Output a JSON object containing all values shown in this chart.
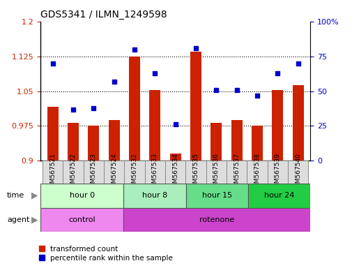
{
  "title": "GDS5341 / ILMN_1249598",
  "samples": [
    "GSM567521",
    "GSM567522",
    "GSM567523",
    "GSM567524",
    "GSM567532",
    "GSM567533",
    "GSM567534",
    "GSM567535",
    "GSM567536",
    "GSM567537",
    "GSM567538",
    "GSM567539",
    "GSM567540"
  ],
  "red_values": [
    1.017,
    0.982,
    0.975,
    0.988,
    1.125,
    1.053,
    0.915,
    1.135,
    0.982,
    0.988,
    0.975,
    1.052,
    1.063
  ],
  "blue_values": [
    70,
    37,
    38,
    57,
    80,
    63,
    26,
    81,
    51,
    51,
    47,
    63,
    70
  ],
  "time_groups": [
    {
      "label": "hour 0",
      "start": 0,
      "end": 4,
      "color": "#ccffcc"
    },
    {
      "label": "hour 8",
      "start": 4,
      "end": 7,
      "color": "#aaeebb"
    },
    {
      "label": "hour 15",
      "start": 7,
      "end": 10,
      "color": "#66dd88"
    },
    {
      "label": "hour 24",
      "start": 10,
      "end": 13,
      "color": "#22cc44"
    }
  ],
  "agent_groups": [
    {
      "label": "control",
      "start": 0,
      "end": 4,
      "color": "#ee88ee"
    },
    {
      "label": "rotenone",
      "start": 4,
      "end": 13,
      "color": "#cc44cc"
    }
  ],
  "ylim_left": [
    0.9,
    1.2
  ],
  "yticks_left": [
    0.9,
    0.975,
    1.05,
    1.125,
    1.2
  ],
  "ytick_labels_left": [
    "0.9",
    "0.975",
    "1.05",
    "1.125",
    "1.2"
  ],
  "ytick_labels_right": [
    "0",
    "25",
    "50",
    "75",
    "100%"
  ],
  "bar_color": "#cc2200",
  "dot_color": "#0000cc",
  "bar_width": 0.55,
  "bg_color": "#ffffff",
  "legend_red": "transformed count",
  "legend_blue": "percentile rank within the sample"
}
